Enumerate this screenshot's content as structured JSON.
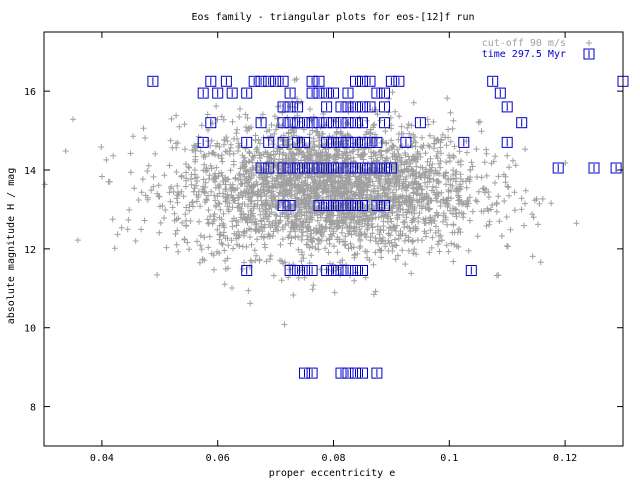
{
  "chart_data": {
    "type": "scatter",
    "title": "Eos family - triangular plots for eos-[12]f run",
    "xlabel": "proper eccentricity e",
    "ylabel": "absolute magnitude H / mag",
    "xlim": [
      0.03,
      0.13
    ],
    "ylim": [
      7.0,
      17.5
    ],
    "x_ticks": [
      "0.04",
      "0.06",
      "0.08",
      "0.1",
      "0.12"
    ],
    "y_ticks": [
      "8",
      "10",
      "12",
      "14",
      "16"
    ],
    "grid": false,
    "legend_position": "top-right",
    "series": [
      {
        "name": "cut-off 90 m/s",
        "marker": "plus",
        "color": "#a0a0a0",
        "cloud": {
          "count": 3000,
          "center_x": 0.079,
          "center_y": 13.5,
          "spread_x": 0.013,
          "spread_y": 0.85,
          "x_range": [
            0.03,
            0.13
          ],
          "y_range": [
            7.2,
            16.5
          ]
        }
      },
      {
        "name": "time 297.5 Myr",
        "marker": "square",
        "color": "#0000cc",
        "rows": [
          {
            "y": 16.25,
            "x": [
              0.0488,
              0.0588,
              0.0615,
              0.0663,
              0.0675,
              0.0688,
              0.07,
              0.0713,
              0.0763,
              0.0775,
              0.0838,
              0.085,
              0.0863,
              0.09,
              0.0913,
              0.1075,
              0.13
            ]
          },
          {
            "y": 15.95,
            "x": [
              0.0575,
              0.06,
              0.0625,
              0.065,
              0.0725,
              0.0763,
              0.0775,
              0.0788,
              0.08,
              0.0825,
              0.0875,
              0.0888,
              0.1088
            ]
          },
          {
            "y": 15.6,
            "x": [
              0.0713,
              0.0725,
              0.0738,
              0.0788,
              0.0813,
              0.0825,
              0.0838,
              0.085,
              0.0863,
              0.0888,
              0.11
            ]
          },
          {
            "y": 15.2,
            "x": [
              0.0588,
              0.0675,
              0.0713,
              0.0725,
              0.0738,
              0.075,
              0.0763,
              0.0775,
              0.0788,
              0.08,
              0.0813,
              0.0825,
              0.0838,
              0.085,
              0.0888,
              0.095,
              0.1125
            ]
          },
          {
            "y": 14.7,
            "x": [
              0.0575,
              0.065,
              0.0688,
              0.0713,
              0.0738,
              0.075,
              0.0788,
              0.08,
              0.0813,
              0.0825,
              0.0838,
              0.085,
              0.0863,
              0.0875,
              0.0925,
              0.1025,
              0.11
            ]
          },
          {
            "y": 14.05,
            "x": [
              0.0675,
              0.0688,
              0.0713,
              0.0725,
              0.0738,
              0.075,
              0.0763,
              0.0775,
              0.0788,
              0.08,
              0.0813,
              0.0825,
              0.0838,
              0.085,
              0.0863,
              0.0875,
              0.0888,
              0.09,
              0.1188,
              0.125,
              0.1288
            ]
          },
          {
            "y": 13.1,
            "x": [
              0.0713,
              0.0725,
              0.0775,
              0.0788,
              0.08,
              0.0813,
              0.0825,
              0.0838,
              0.085,
              0.0875,
              0.0888
            ]
          },
          {
            "y": 11.45,
            "x": [
              0.065,
              0.0725,
              0.0738,
              0.075,
              0.0763,
              0.0788,
              0.08,
              0.0813,
              0.0825,
              0.0838,
              0.085,
              0.1038
            ]
          },
          {
            "y": 8.85,
            "x": [
              0.075,
              0.0763,
              0.0813,
              0.0825,
              0.0838,
              0.085,
              0.0875
            ]
          }
        ]
      }
    ]
  }
}
